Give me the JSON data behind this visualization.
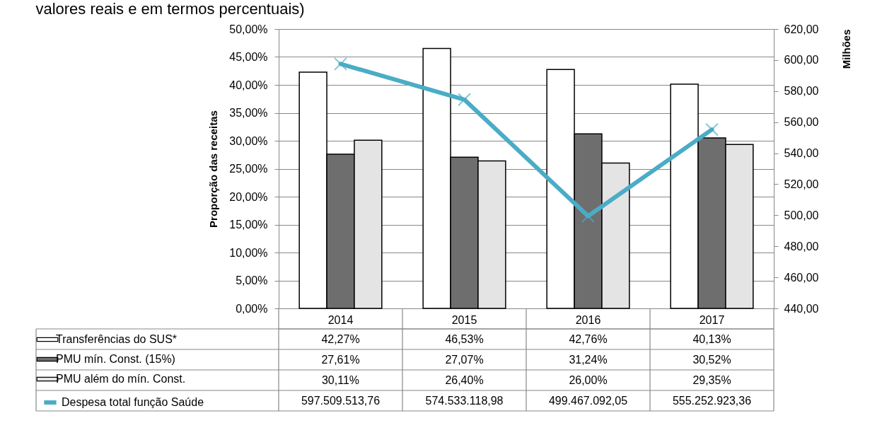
{
  "chart_data": {
    "type": "bar",
    "title": "valores reais e em termos percentuais)",
    "ylabel": "Proporção das receitas",
    "y2label": "Milhões",
    "categories": [
      "2014",
      "2015",
      "2016",
      "2017"
    ],
    "series": [
      {
        "name": "Transferências do SUS*",
        "color": "#ffffff",
        "values": [
          42.27,
          46.53,
          42.76,
          40.13
        ],
        "value_labels": [
          "42,27%",
          "46,53%",
          "42,76%",
          "40,13%"
        ]
      },
      {
        "name": "PMU mín. Const. (15%)",
        "color": "#6e6e6e",
        "values": [
          27.61,
          27.07,
          31.24,
          30.52
        ],
        "value_labels": [
          "27,61%",
          "27,07%",
          "31,24%",
          "30,52%"
        ]
      },
      {
        "name": "PMU além do mín. Const.",
        "color": "#e4e4e4",
        "values": [
          30.11,
          26.4,
          26.0,
          29.35
        ],
        "value_labels": [
          "30,11%",
          "26,40%",
          "26,00%",
          "29,35%"
        ]
      },
      {
        "name": "Despesa total função Saúde",
        "type": "line",
        "axis": "y2",
        "color": "#4bacc6",
        "marker": "cross",
        "values": [
          597.50951376,
          574.53311898,
          499.46709205,
          555.25292336
        ]
      }
    ],
    "annotations": [
      "597.509.513,76",
      "574.533.118,98",
      "499.467.092,05",
      "555.252.923,36"
    ],
    "ylim": [
      0,
      50
    ],
    "yticks": [
      {
        "value": 0,
        "label": "0,00%"
      },
      {
        "value": 5,
        "label": "5,00%"
      },
      {
        "value": 10,
        "label": "10,00%"
      },
      {
        "value": 15,
        "label": "15,00%"
      },
      {
        "value": 20,
        "label": "20,00%"
      },
      {
        "value": 25,
        "label": "25,00%"
      },
      {
        "value": 30,
        "label": "30,00%"
      },
      {
        "value": 35,
        "label": "35,00%"
      },
      {
        "value": 40,
        "label": "40,00%"
      },
      {
        "value": 45,
        "label": "45,00%"
      },
      {
        "value": 50,
        "label": "50,00%"
      }
    ],
    "y2lim": [
      440,
      620
    ],
    "y2ticks": [
      {
        "value": 440,
        "label": "440,00"
      },
      {
        "value": 460,
        "label": "460,00"
      },
      {
        "value": 480,
        "label": "480,00"
      },
      {
        "value": 500,
        "label": "500,00"
      },
      {
        "value": 520,
        "label": "520,00"
      },
      {
        "value": 540,
        "label": "540,00"
      },
      {
        "value": 560,
        "label": "560,00"
      },
      {
        "value": 580,
        "label": "580,00"
      },
      {
        "value": 600,
        "label": "600,00"
      },
      {
        "value": 620,
        "label": "620,00"
      }
    ],
    "grid": "y",
    "legend": "bottom left"
  }
}
